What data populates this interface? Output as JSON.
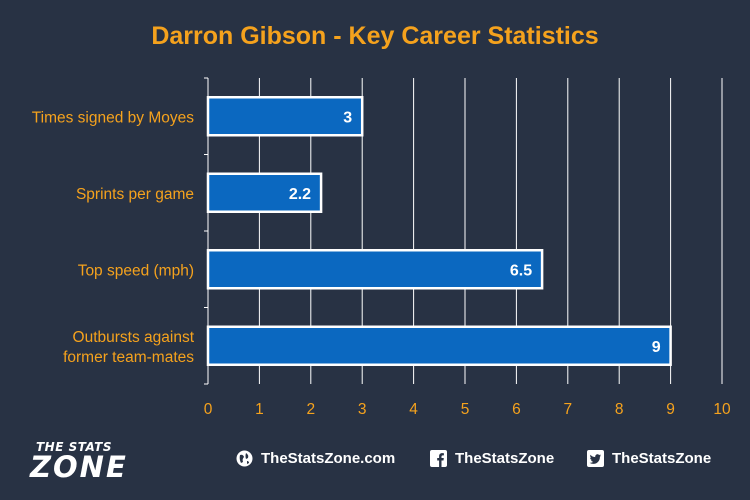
{
  "chart_data": {
    "type": "bar",
    "orientation": "horizontal",
    "title": "Darron Gibson - Key Career Statistics",
    "categories": [
      [
        "Times signed by Moyes"
      ],
      [
        "Sprints per game"
      ],
      [
        "Top speed (mph)"
      ],
      [
        "Outbursts against",
        "former team-mates"
      ]
    ],
    "values": [
      3,
      2.2,
      6.5,
      9
    ],
    "value_labels": [
      "3",
      "2.2",
      "6.5",
      "9"
    ],
    "xlim": [
      0,
      10
    ],
    "x_ticks": [
      "0",
      "1",
      "2",
      "3",
      "4",
      "5",
      "6",
      "7",
      "8",
      "9",
      "10"
    ],
    "grid": "vertical",
    "colors": {
      "background": "#283244",
      "bar_fill": "#0b68c0",
      "bar_stroke": "#ffffff",
      "label_text": "#f5a21d",
      "title_text": "#f5a21d",
      "gridline": "#ffffff"
    }
  },
  "footer": {
    "logo_top": "THE STATS",
    "logo_main": "ZONE",
    "website": "TheStatsZone.com",
    "facebook": "TheStatsZone",
    "twitter": "TheStatsZone"
  }
}
